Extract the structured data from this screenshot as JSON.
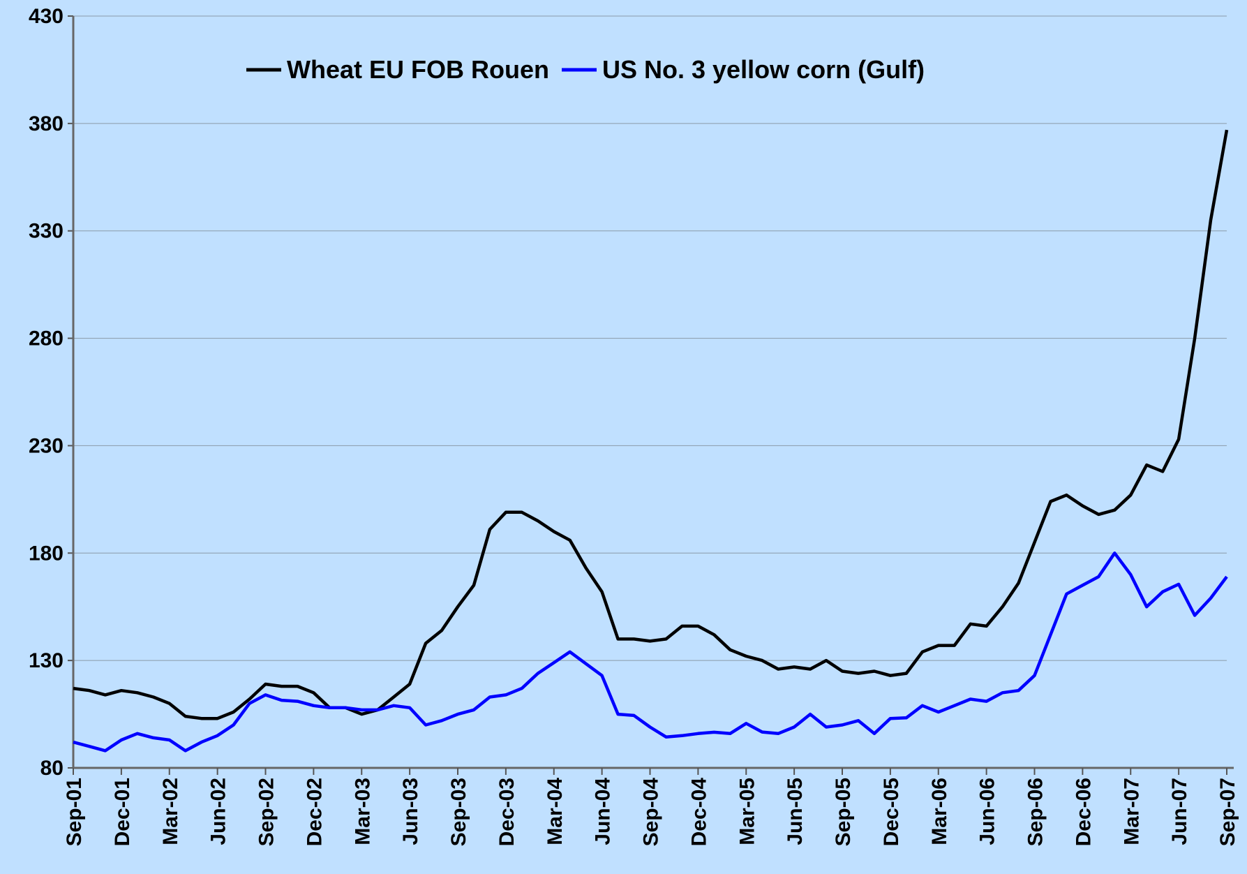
{
  "chart_data": {
    "type": "line",
    "categories": [
      "Sep-01",
      null,
      null,
      "Dec-01",
      null,
      null,
      "Mar-02",
      null,
      null,
      "Jun-02",
      null,
      null,
      "Sep-02",
      null,
      null,
      "Dec-02",
      null,
      null,
      "Mar-03",
      null,
      null,
      "Jun-03",
      null,
      null,
      "Sep-03",
      null,
      null,
      "Dec-03",
      null,
      null,
      "Mar-04",
      null,
      null,
      "Jun-04",
      null,
      null,
      "Sep-04",
      null,
      null,
      "Dec-04",
      null,
      null,
      "Mar-05",
      null,
      null,
      "Jun-05",
      null,
      null,
      "Sep-05",
      null,
      null,
      "Dec-05",
      null,
      null,
      "Mar-06",
      null,
      null,
      "Jun-06",
      null,
      null,
      "Sep-06",
      null,
      null,
      "Dec-06",
      null,
      null,
      "Mar-07",
      null,
      null,
      "Jun-07",
      null,
      null,
      "Sep-07"
    ],
    "series": [
      {
        "name": "Wheat EU FOB Rouen",
        "color": "#000000",
        "values": [
          117,
          116,
          114,
          116,
          115,
          113,
          110,
          104,
          103,
          103,
          106,
          112,
          119,
          118,
          118,
          115,
          108,
          108,
          105,
          107,
          113,
          119,
          138,
          144,
          155,
          165,
          191,
          199,
          199,
          195,
          190,
          186,
          173,
          162,
          140,
          140,
          139,
          140,
          146,
          146,
          142,
          135,
          132,
          130,
          126,
          127,
          126,
          130,
          125,
          124,
          125,
          123,
          124,
          134,
          137,
          137,
          147,
          146,
          155,
          166,
          185,
          204,
          207,
          202,
          198,
          200,
          207,
          221,
          218,
          233,
          280,
          335,
          377
        ]
      },
      {
        "name": "US No. 3 yellow corn (Gulf)",
        "color": "#0000ff",
        "values": [
          92,
          90,
          88,
          93,
          96,
          94,
          93,
          88,
          92,
          95,
          100,
          110,
          114,
          111.5,
          111,
          109,
          108,
          108,
          107,
          107,
          109,
          108,
          100,
          102,
          105,
          107,
          113,
          114,
          117,
          124,
          129,
          134,
          128.5,
          123,
          105,
          104.4,
          99,
          94.4,
          95,
          96,
          96.6,
          96,
          100.7,
          96.7,
          96,
          99,
          105,
          99,
          100,
          102,
          96,
          103,
          103.3,
          109,
          106,
          109,
          112,
          111,
          115,
          116,
          123,
          142,
          161,
          165,
          169,
          180,
          170,
          155,
          162,
          165.5,
          151,
          159,
          169
        ]
      }
    ],
    "ylim": [
      80,
      430
    ],
    "yticks": [
      80,
      130,
      180,
      230,
      280,
      330,
      380,
      430
    ],
    "grid": true,
    "legend": "top"
  }
}
